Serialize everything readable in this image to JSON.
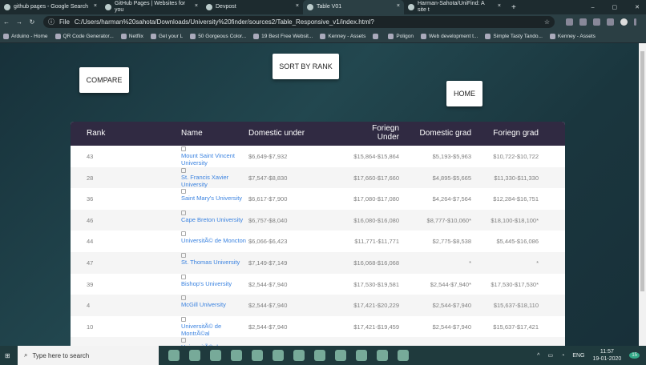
{
  "browser": {
    "tabs": [
      {
        "label": "github pages - Google Search",
        "icon": "google-icon"
      },
      {
        "label": "GitHub Pages | Websites for you",
        "icon": "github-icon"
      },
      {
        "label": "Devpost",
        "icon": "devpost-icon"
      },
      {
        "label": "Table V01",
        "icon": "home-icon",
        "active": true
      },
      {
        "label": "Harman-Sahota/UniFind: A site t",
        "icon": "github-icon"
      }
    ],
    "new_tab": "+",
    "address_prefix": "File",
    "url": "C:/Users/harman%20sahota/Downloads/University%20finder/sources2/Table_Responsive_v1/index.html?",
    "bookmarks": [
      "Arduino - Home",
      "QR Code Generator...",
      "Netflix",
      "Get your L",
      "50 Gorgeous Color...",
      "19 Best Free Websit...",
      "Kenney - Assets",
      "",
      "Poligon",
      "Web development t...",
      "Simple Tasty Tando...",
      "Kenney - Assets"
    ]
  },
  "buttons": {
    "compare": "COMPARE",
    "sort": "SORT BY RANK",
    "home": "HOME"
  },
  "table": {
    "headers": [
      "Rank",
      "Name",
      "Domestic under",
      "Foriegn Under",
      "Domestic grad",
      "Foriegn grad"
    ],
    "rows": [
      [
        "43",
        "Mount Saint Vincent University",
        "$6,649-$7,932",
        "$15,864-$15,864",
        "$5,193-$5,963",
        "$10,722-$10,722"
      ],
      [
        "28",
        "St. Francis Xavier University",
        "$7,547-$8,830",
        "$17,660-$17,660",
        "$4,895-$5,665",
        "$11,330-$11,330"
      ],
      [
        "36",
        "Saint Mary's University",
        "$6,617-$7,900",
        "$17,080-$17,080",
        "$4,264-$7,564",
        "$12,284-$16,751"
      ],
      [
        "46",
        "Cape Breton University",
        "$6,757-$8,040",
        "$16,080-$16,080",
        "$8,777-$10,060*",
        "$18,100-$18,100*"
      ],
      [
        "44",
        "UniversitÃ© de Moncton",
        "$6,066-$6,423",
        "$11,771-$11,771",
        "$2,775-$8,538",
        "$5,445-$16,086"
      ],
      [
        "47",
        "St. Thomas University",
        "$7,149-$7,149",
        "$16,068-$16,068",
        "*",
        "*"
      ],
      [
        "39",
        "Bishop's University",
        "$2,544-$7,940",
        "$17,530-$19,581",
        "$2,544-$7,940*",
        "$17,530-$17,530*"
      ],
      [
        "4",
        "McGill University",
        "$2,544-$7,940",
        "$17,421-$20,229",
        "$2,544-$7,940",
        "$15,637-$18,110"
      ],
      [
        "10",
        "UniversitÃ© de MontrÃ©al",
        "$2,544-$7,940",
        "$17,421-$19,459",
        "$2,544-$7,940",
        "$15,637-$17,421"
      ],
      [
        "",
        "UniversitÃ© du",
        "",
        "",
        "",
        ""
      ]
    ]
  },
  "taskbar": {
    "search_placeholder": "Type here to search",
    "lang": "ENG",
    "time": "11:57",
    "date": "19-01-2020",
    "notifications": "15"
  }
}
